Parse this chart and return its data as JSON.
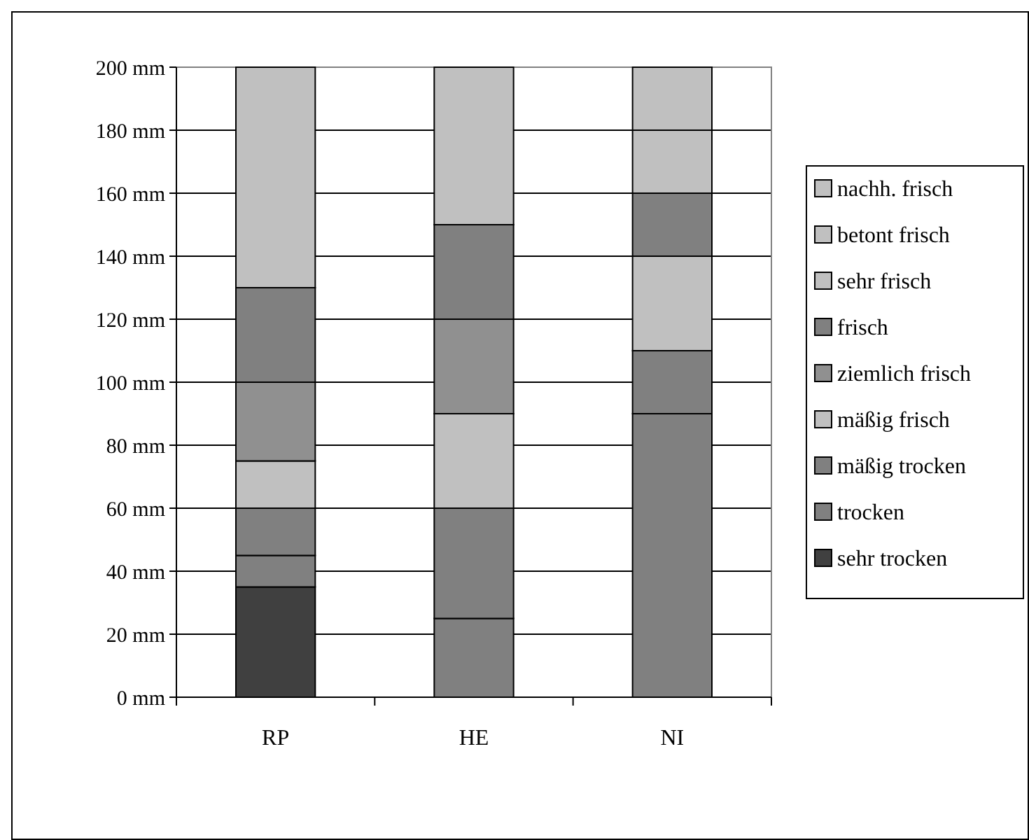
{
  "chart_data": {
    "type": "bar",
    "stacked": true,
    "categories": [
      "RP",
      "HE",
      "NI"
    ],
    "series": [
      {
        "name": "sehr trocken",
        "color": "#404040",
        "values": [
          35,
          null,
          null
        ]
      },
      {
        "name": "trocken",
        "color": "#808080",
        "values": [
          10,
          25,
          90
        ]
      },
      {
        "name": "mäßig trocken",
        "color": "#808080",
        "values": [
          15,
          35,
          20
        ]
      },
      {
        "name": "mäßig frisch",
        "color": "#c0c0c0",
        "values": [
          15,
          30,
          30
        ]
      },
      {
        "name": "ziemlich frisch",
        "color": "#909090",
        "values": [
          25,
          30,
          null
        ]
      },
      {
        "name": "frisch",
        "color": "#808080",
        "values": [
          30,
          30,
          20
        ]
      },
      {
        "name": "sehr frisch",
        "color": "#c0c0c0",
        "values": [
          70,
          50,
          20
        ]
      },
      {
        "name": "betont frisch",
        "color": "#c0c0c0",
        "values": [
          null,
          null,
          20
        ]
      },
      {
        "name": "nachh. frisch",
        "color": "#c0c0c0",
        "values": [
          null,
          null,
          null
        ]
      }
    ],
    "ylim": [
      0,
      200
    ],
    "yticks": [
      {
        "value": 0,
        "label": "0 mm"
      },
      {
        "value": 20,
        "label": "20 mm"
      },
      {
        "value": 40,
        "label": "40 mm"
      },
      {
        "value": 60,
        "label": "60 mm"
      },
      {
        "value": 80,
        "label": "80 mm"
      },
      {
        "value": 100,
        "label": "100 mm"
      },
      {
        "value": 120,
        "label": "120 mm"
      },
      {
        "value": 140,
        "label": "140 mm"
      },
      {
        "value": 160,
        "label": "160 mm"
      },
      {
        "value": 180,
        "label": "180 mm"
      },
      {
        "value": 200,
        "label": "200 mm"
      }
    ],
    "grid": "y",
    "legend": "right"
  }
}
